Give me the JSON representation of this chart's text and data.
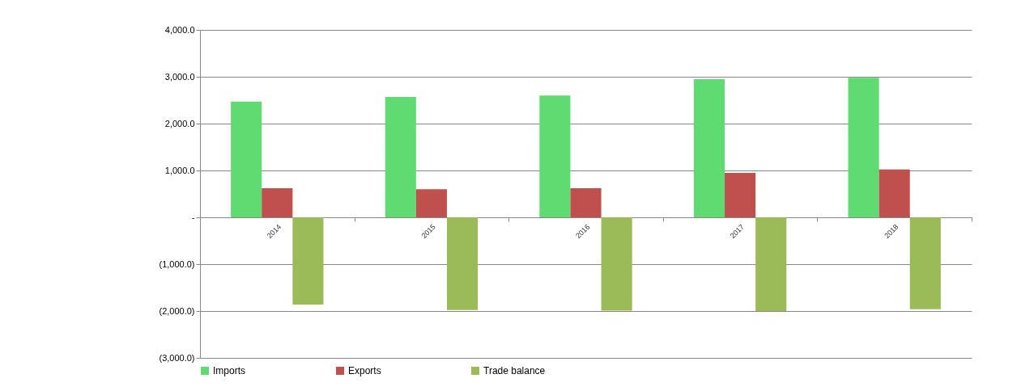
{
  "chart_data": {
    "type": "bar",
    "categories": [
      "2014",
      "2015",
      "2016",
      "2017",
      "2018"
    ],
    "series": [
      {
        "name": "Imports",
        "color": "#5fdb72",
        "values": [
          2470,
          2570,
          2600,
          2950,
          2980
        ]
      },
      {
        "name": "Exports",
        "color": "#c0504d",
        "values": [
          620,
          600,
          620,
          950,
          1020
        ]
      },
      {
        "name": "Trade balance",
        "color": "#9bbb59",
        "values": [
          -1860,
          -1980,
          -1990,
          -2000,
          -1960
        ]
      }
    ],
    "ylim": [
      -3000,
      4000
    ],
    "yticks": [
      {
        "value": -3000,
        "label": "(3,000.0)"
      },
      {
        "value": -2000,
        "label": "(2,000.0)"
      },
      {
        "value": -1000,
        "label": "(1,000.0)"
      },
      {
        "value": 0,
        "label": "-"
      },
      {
        "value": 1000,
        "label": "1,000.0"
      },
      {
        "value": 2000,
        "label": "2,000.0"
      },
      {
        "value": 3000,
        "label": "3,000.0"
      },
      {
        "value": 4000,
        "label": "4,000.0"
      }
    ],
    "grid": "y",
    "legend": "bottom"
  }
}
